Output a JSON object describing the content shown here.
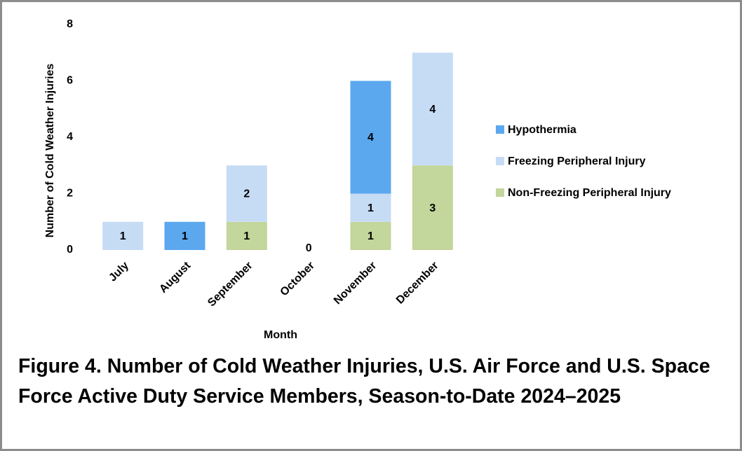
{
  "chart_data": {
    "type": "stacked_bar",
    "title": "Figure 4. Number of Cold Weather Injuries, U.S. Air Force and U.S. Space Force Active Duty Service Members, Season-to-Date 2024–2025",
    "xlabel": "Month",
    "ylabel": "Number of Cold Weather Injuries",
    "categories": [
      "July",
      "August",
      "September",
      "October",
      "November",
      "December"
    ],
    "series": [
      {
        "name": "Non-Freezing Peripheral Injury",
        "color": "#c3d69b",
        "values": [
          0,
          0,
          1,
          0,
          1,
          3
        ],
        "value_labels": [
          null,
          null,
          "1",
          "0",
          "1",
          "3"
        ]
      },
      {
        "name": "Freezing Peripheral Injury",
        "color": "#c6dcf5",
        "values": [
          1,
          0,
          2,
          0,
          1,
          4
        ],
        "value_labels": [
          "1",
          null,
          "2",
          null,
          "1",
          "4"
        ]
      },
      {
        "name": "Hypothermia",
        "color": "#5ba8ef",
        "values": [
          0,
          1,
          0,
          0,
          4,
          0
        ],
        "value_labels": [
          null,
          "1",
          null,
          null,
          "4",
          null
        ]
      }
    ],
    "ylim": [
      0,
      8
    ],
    "yticks": [
      0,
      2,
      4,
      6,
      8
    ],
    "grid": false,
    "legend": "right"
  }
}
